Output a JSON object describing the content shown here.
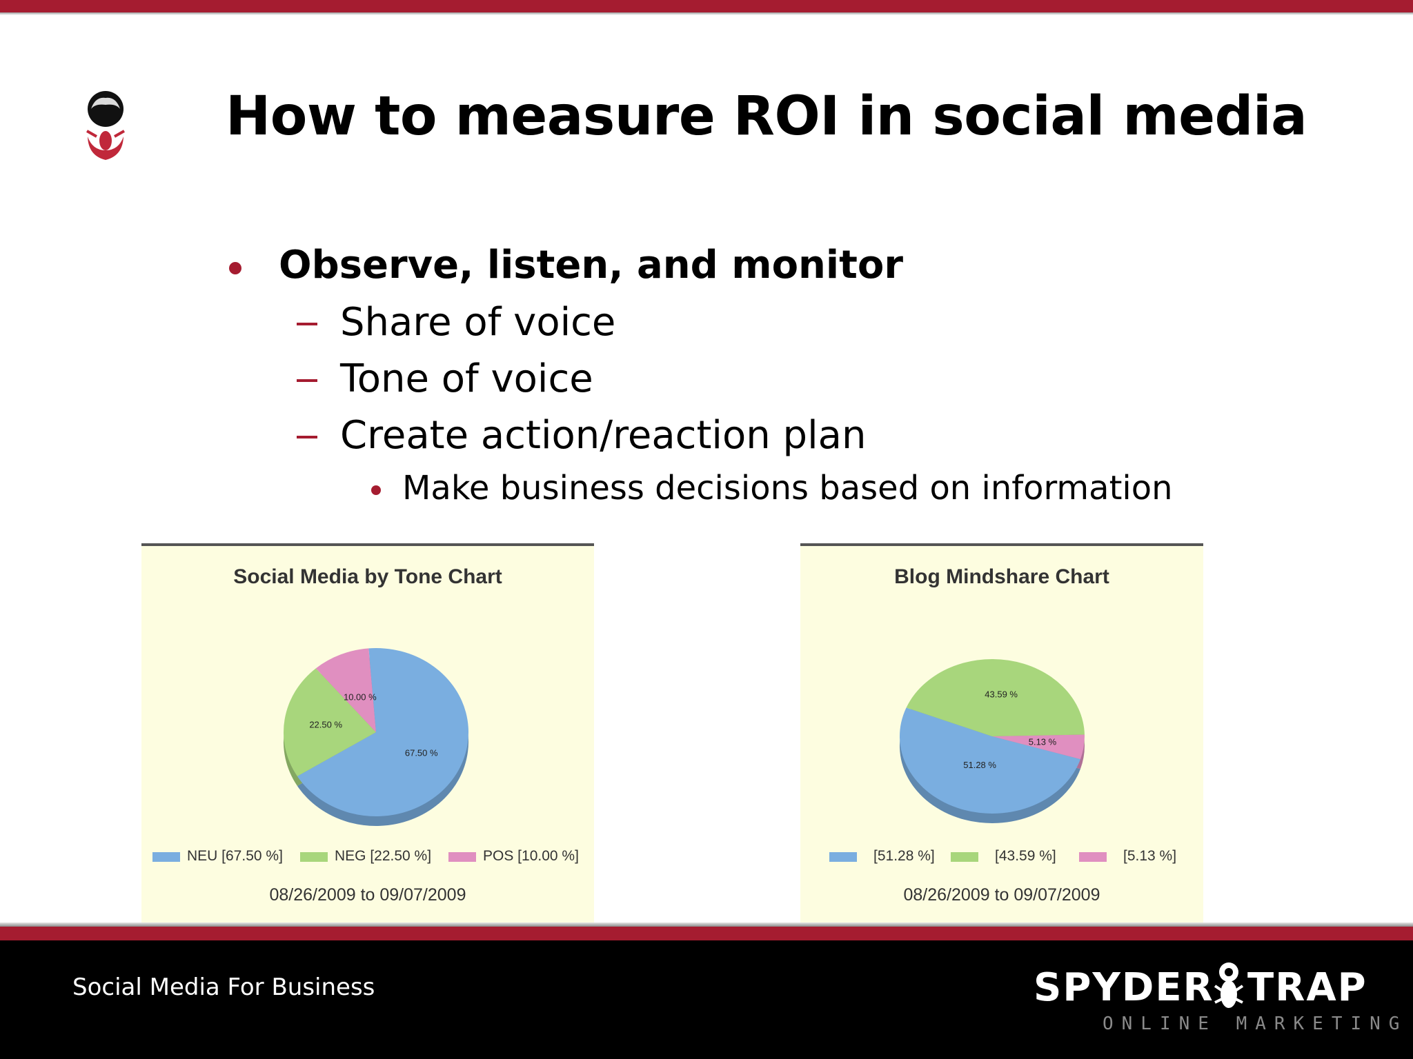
{
  "slide": {
    "title": "How to measure ROI in social media",
    "bullets": {
      "level1": "Observe, listen, and monitor",
      "level2": [
        "Share of voice",
        "Tone of voice",
        "Create action/reaction plan"
      ],
      "level3": "Make business decisions based on information"
    }
  },
  "footer": {
    "text": "Social Media For Business",
    "brand_left": "SPYDER",
    "brand_right": "TRAP",
    "brand_tagline": "ONLINE MARKETING"
  },
  "colors": {
    "accent": "#a51c30",
    "neu": "#7aaee0",
    "neg": "#a8d67c",
    "pos": "#e08fc0"
  },
  "chart_data": [
    {
      "type": "pie",
      "title": "Social Media by Tone Chart",
      "date_range": "08/26/2009 to 09/07/2009",
      "legend_position": "bottom",
      "slices": [
        {
          "name": "NEU",
          "value": 67.5,
          "label": "67.50 %",
          "legend": "NEU [67.50 %]",
          "color": "#7aaee0"
        },
        {
          "name": "NEG",
          "value": 22.5,
          "label": "22.50 %",
          "legend": "NEG [22.50 %]",
          "color": "#a8d67c"
        },
        {
          "name": "POS",
          "value": 10.0,
          "label": "10.00 %",
          "legend": "POS [10.00 %]",
          "color": "#e08fc0"
        }
      ]
    },
    {
      "type": "pie",
      "title": "Blog Mindshare Chart",
      "date_range": "08/26/2009 to 09/07/2009",
      "legend_position": "bottom",
      "slices": [
        {
          "name": "",
          "value": 51.28,
          "label": "51.28 %",
          "legend": "[51.28 %]",
          "color": "#7aaee0"
        },
        {
          "name": "",
          "value": 43.59,
          "label": "43.59 %",
          "legend": "[43.59 %]",
          "color": "#a8d67c"
        },
        {
          "name": "",
          "value": 5.13,
          "label": "5.13 %",
          "legend": "[5.13 %]",
          "color": "#e08fc0"
        }
      ]
    }
  ]
}
